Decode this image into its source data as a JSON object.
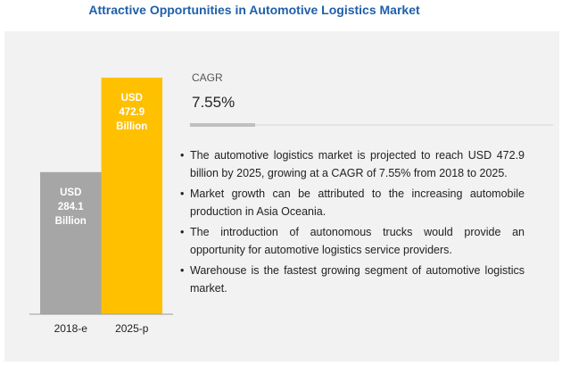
{
  "chart_data": {
    "type": "bar",
    "title": "Attractive Opportunities in Automotive Logistics Market",
    "categories": [
      "2018-e",
      "2025-p"
    ],
    "values": [
      284.1,
      472.9
    ],
    "colors": [
      "#a6a6a6",
      "#ffc000"
    ],
    "value_prefix": "USD",
    "value_suffix": "Billion"
  },
  "cagr": {
    "label": "CAGR",
    "value": "7.55%"
  },
  "bullets": [
    "The automotive logistics market is projected to reach USD 472.9 billion by 2025, growing at a CAGR of 7.55% from 2018 to 2025.",
    "Market growth can be attributed to the increasing automobile production in Asia Oceania.",
    "The introduction of autonomous trucks would provide an opportunity for automotive logistics service providers.",
    "Warehouse is the fastest growing segment of automotive logistics market."
  ]
}
